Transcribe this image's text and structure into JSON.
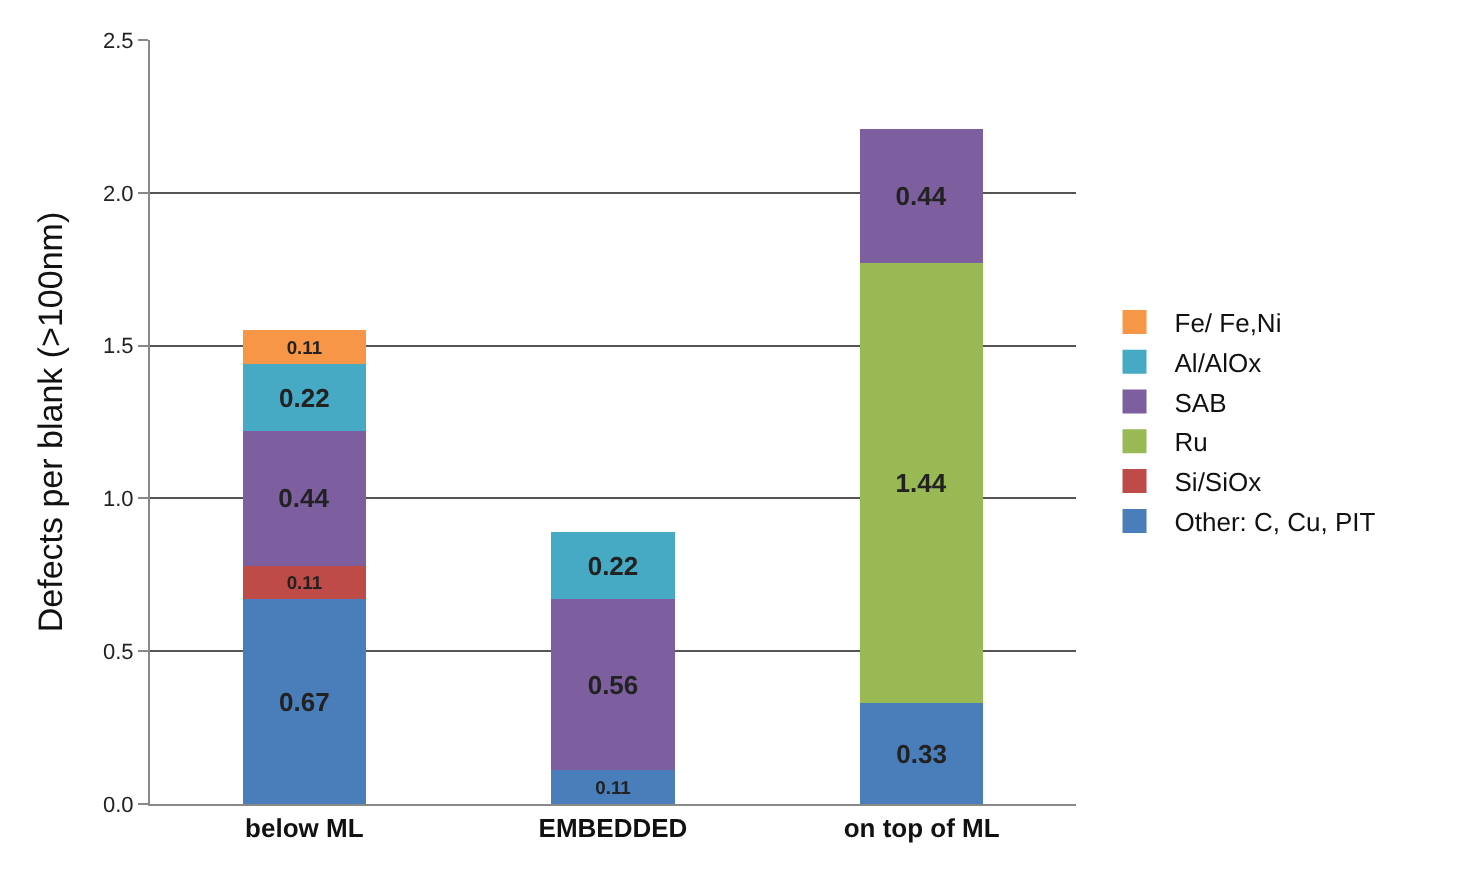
{
  "chart_data": {
    "type": "bar",
    "stacked": true,
    "ylabel": "Defects per blank (>100nm)",
    "categories": [
      "below ML",
      "EMBEDDED",
      "on top of ML"
    ],
    "series": [
      {
        "name": "Other: C, Cu, PIT",
        "color": "#4a7ebb",
        "values": [
          0.67,
          0.11,
          0.33
        ]
      },
      {
        "name": "Si/SiOx",
        "color": "#be4b48",
        "values": [
          0.11,
          null,
          null
        ]
      },
      {
        "name": "Ru",
        "color": "#98b954",
        "values": [
          null,
          null,
          1.44
        ]
      },
      {
        "name": "SAB",
        "color": "#7d5fa0",
        "values": [
          0.44,
          0.56,
          0.44
        ]
      },
      {
        "name": "Al/AlOx",
        "color": "#46aac5",
        "values": [
          0.22,
          0.22,
          null
        ]
      },
      {
        "name": "Fe/ Fe,Ni",
        "color": "#f79646",
        "values": [
          0.11,
          null,
          null
        ]
      }
    ],
    "data_labels": true,
    "ylim": [
      0,
      2.5
    ],
    "yticks": [
      {
        "value": 0,
        "label": "0.0"
      },
      {
        "value": 0.5,
        "label": "0.5"
      },
      {
        "value": 1,
        "label": "1.0"
      },
      {
        "value": 1.5,
        "label": "1.5"
      },
      {
        "value": 2,
        "label": "2.0"
      },
      {
        "value": 2.5,
        "label": "2.5"
      }
    ],
    "grid": "y",
    "legend": "right"
  }
}
